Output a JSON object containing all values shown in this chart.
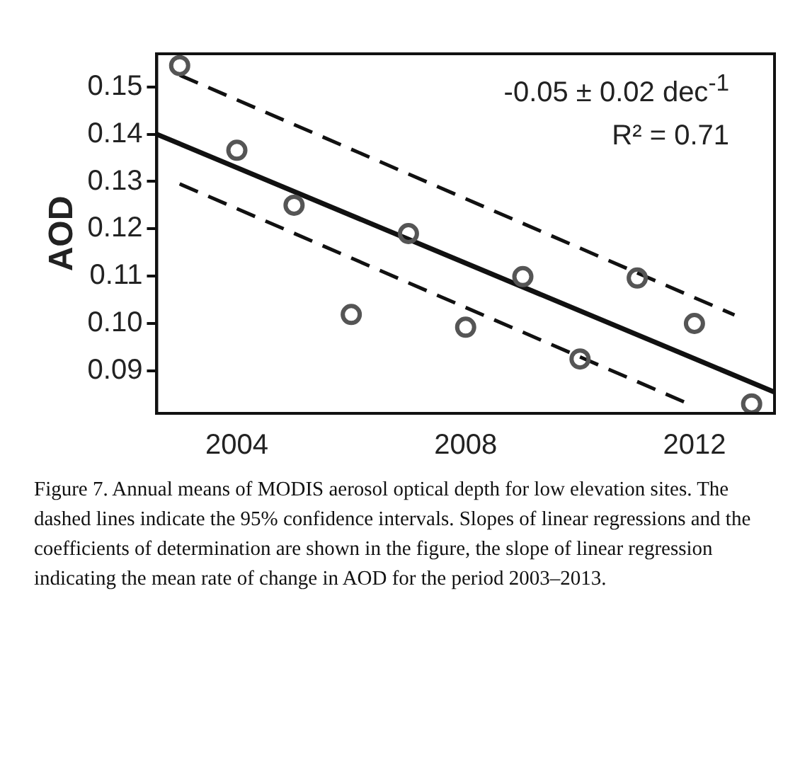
{
  "chart_data": {
    "type": "scatter",
    "ylabel": "AOD",
    "xlim": [
      2002.6,
      2013.4
    ],
    "xticks": [
      2004,
      2008,
      2012
    ],
    "ylim": [
      0.081,
      0.157
    ],
    "yticks": [
      0.09,
      {
        "value": 0.1,
        "label": "0.10"
      },
      0.11,
      0.12,
      0.13,
      0.14,
      0.15
    ],
    "grid": false,
    "legend": false,
    "series": [
      {
        "color": "#555555",
        "marker": "circle",
        "x": [
          2003,
          2004,
          2005,
          2006,
          2007,
          2008,
          2009,
          2010,
          2011,
          2012,
          2013
        ],
        "values": [
          0.1545,
          0.1366,
          0.125,
          0.1019,
          0.119,
          0.0992,
          0.1099,
          0.0925,
          0.1096,
          0.1,
          0.083
        ]
      },
      {
        "type": "line",
        "color": "#111111",
        "marker": "none",
        "line_style": "solid",
        "x": [
          2002.6,
          2013.4
        ],
        "values": [
          0.14,
          0.0855
        ]
      },
      {
        "type": "line",
        "color": "#111111",
        "marker": "none",
        "line_style": "dashed",
        "x": [
          2003,
          2012.7
        ],
        "values": [
          0.1525,
          0.1018
        ]
      },
      {
        "type": "line",
        "color": "#111111",
        "marker": "none",
        "line_style": "dashed",
        "x": [
          2003,
          2011.9
        ],
        "values": [
          0.1295,
          0.083
        ]
      }
    ],
    "annotations": [
      "-0.05 ± 0.02 dec$^{-1}$",
      "R² = 0.71",
      "Figure 7. Annual means of MODIS aerosol optical depth for low elevation sites. The dashed lines indicate the 95% confidence intervals. Slopes of linear regressions and the coefficients of determination are shown in the figure, the slope of linear regression indicating the mean rate of change in AOD for the period 2003–2013."
    ]
  }
}
